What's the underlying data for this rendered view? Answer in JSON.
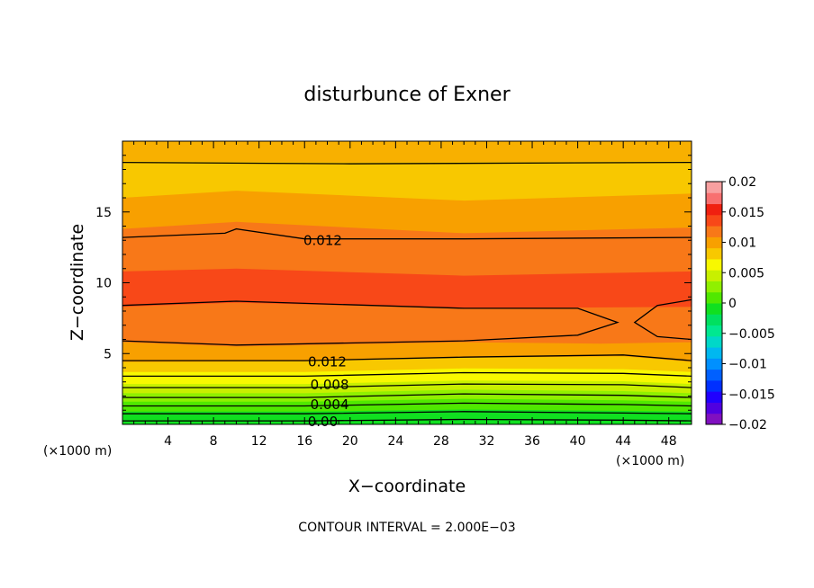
{
  "chart_data": {
    "type": "contour",
    "title": "disturbunce of Exner",
    "xlabel": "X−coordinate",
    "ylabel": "Z−coordinate",
    "x_unit_left": "(×1000 m)",
    "x_unit_right": "(×1000 m)",
    "xlim": [
      0,
      50
    ],
    "ylim": [
      0,
      20
    ],
    "x_ticks": [
      4,
      8,
      12,
      16,
      20,
      24,
      28,
      32,
      36,
      40,
      44,
      48
    ],
    "x_tick_labels": [
      "4",
      "8",
      "12",
      "16",
      "20",
      "24",
      "28",
      "32",
      "36",
      "40",
      "44",
      "48"
    ],
    "y_ticks": [
      5,
      10,
      15
    ],
    "y_tick_labels": [
      "5",
      "10",
      "15"
    ],
    "footer": "CONTOUR INTERVAL = 2.000E−03",
    "colorbar": {
      "labels": [
        "0.02",
        "0.015",
        "0.01",
        "0.005",
        "0",
        "−0.005",
        "−0.01",
        "−0.015",
        "−0.02"
      ],
      "label_values": [
        0.02,
        0.015,
        0.01,
        0.005,
        0,
        -0.005,
        -0.01,
        -0.015,
        -0.02
      ],
      "levels_low_to_high": [
        -0.02,
        -0.018,
        -0.016,
        -0.014,
        -0.012,
        -0.01,
        -0.008,
        -0.006,
        -0.004,
        -0.002,
        0,
        0.002,
        0.004,
        0.006,
        0.008,
        0.01,
        0.012,
        0.014,
        0.016,
        0.018,
        0.02
      ],
      "colors_low_to_high": [
        "#8010c0",
        "#5000e0",
        "#2000ff",
        "#0030ff",
        "#0060ff",
        "#0090ff",
        "#00b8f0",
        "#00d8c8",
        "#00e890",
        "#00e060",
        "#10e020",
        "#50e800",
        "#90f000",
        "#c8f000",
        "#f8f800",
        "#f8c800",
        "#f8a000",
        "#f87818",
        "#f84818",
        "#f02010",
        "#f87070",
        "#f8a0a0"
      ]
    },
    "contour_labels": [
      {
        "text": "0.012",
        "x": 17.6,
        "z": 13.0
      },
      {
        "text": "0.012",
        "x": 18.0,
        "z": 4.4
      },
      {
        "text": "0.008",
        "x": 18.2,
        "z": 2.8
      },
      {
        "text": "0.004",
        "x": 18.2,
        "z": 1.4
      },
      {
        "text": "0.00",
        "x": 17.6,
        "z": 0.2
      }
    ],
    "bands": [
      {
        "value": 0.001,
        "color": "#10e020",
        "pts": [
          [
            0,
            0.3
          ],
          [
            16,
            0.3
          ],
          [
            30,
            0.4
          ],
          [
            44,
            0.35
          ],
          [
            50,
            0.3
          ]
        ]
      },
      {
        "value": 0.003,
        "color": "#50e800",
        "pts": [
          [
            0,
            0.9
          ],
          [
            16,
            0.9
          ],
          [
            30,
            1.05
          ],
          [
            44,
            0.95
          ],
          [
            50,
            0.9
          ]
        ]
      },
      {
        "value": 0.005,
        "color": "#90f000",
        "pts": [
          [
            0,
            1.6
          ],
          [
            16,
            1.6
          ],
          [
            30,
            1.8
          ],
          [
            44,
            1.7
          ],
          [
            50,
            1.6
          ]
        ]
      },
      {
        "value": 0.007,
        "color": "#c8f000",
        "pts": [
          [
            0,
            2.2
          ],
          [
            16,
            2.2
          ],
          [
            30,
            2.45
          ],
          [
            44,
            2.35
          ],
          [
            50,
            2.2
          ]
        ]
      },
      {
        "value": 0.009,
        "color": "#f8f800",
        "pts": [
          [
            0,
            2.85
          ],
          [
            16,
            2.85
          ],
          [
            30,
            3.1
          ],
          [
            44,
            3.05
          ],
          [
            50,
            2.85
          ]
        ]
      },
      {
        "value": 0.011,
        "color": "#f8c800",
        "pts": [
          [
            0,
            3.7
          ],
          [
            16,
            3.7
          ],
          [
            30,
            3.95
          ],
          [
            44,
            3.9
          ],
          [
            50,
            3.7
          ]
        ]
      },
      {
        "value": 0.013,
        "color": "#f8a000",
        "pts": [
          [
            0,
            4.4
          ],
          [
            16,
            4.45
          ],
          [
            30,
            4.7
          ],
          [
            44,
            4.8
          ],
          [
            50,
            4.4
          ]
        ]
      },
      {
        "value": 0.015,
        "color": "#f87818",
        "pts": [
          [
            0,
            5.8
          ],
          [
            10,
            5.5
          ],
          [
            30,
            5.8
          ],
          [
            42,
            5.7
          ],
          [
            50,
            5.8
          ]
        ]
      },
      {
        "value": 0.017,
        "color": "#f84818",
        "pts": [
          [
            0,
            8.3
          ],
          [
            10,
            8.6
          ],
          [
            30,
            8.2
          ],
          [
            50,
            8.3
          ]
        ]
      },
      {
        "value": 0.016,
        "color": "#f87818",
        "pts": [
          [
            0,
            10.8
          ],
          [
            10,
            11.0
          ],
          [
            30,
            10.5
          ],
          [
            50,
            10.8
          ]
        ]
      },
      {
        "value": 0.014,
        "color": "#f8a000",
        "pts": [
          [
            0,
            13.8
          ],
          [
            10,
            14.3
          ],
          [
            30,
            13.5
          ],
          [
            50,
            13.9
          ]
        ]
      },
      {
        "value": 0.012,
        "color": "#f8c800",
        "pts": [
          [
            0,
            16.0
          ],
          [
            10,
            16.5
          ],
          [
            30,
            15.8
          ],
          [
            50,
            16.3
          ]
        ]
      },
      {
        "value": 0.011,
        "color": "#f8b000",
        "pts": [
          [
            0,
            18.6
          ],
          [
            20,
            18.5
          ],
          [
            50,
            18.6
          ]
        ]
      }
    ],
    "contour_lines": [
      {
        "value": 0.0,
        "pts": [
          [
            0,
            0.25
          ],
          [
            16,
            0.25
          ],
          [
            30,
            0.35
          ],
          [
            44,
            0.3
          ],
          [
            50,
            0.25
          ]
        ]
      },
      {
        "value": 0.002,
        "pts": [
          [
            0,
            0.75
          ],
          [
            16,
            0.75
          ],
          [
            30,
            0.9
          ],
          [
            44,
            0.8
          ],
          [
            50,
            0.75
          ]
        ]
      },
      {
        "value": 0.004,
        "pts": [
          [
            0,
            1.3
          ],
          [
            16,
            1.3
          ],
          [
            30,
            1.5
          ],
          [
            44,
            1.4
          ],
          [
            50,
            1.3
          ]
        ]
      },
      {
        "value": 0.006,
        "pts": [
          [
            0,
            1.9
          ],
          [
            16,
            1.9
          ],
          [
            30,
            2.15
          ],
          [
            44,
            2.05
          ],
          [
            50,
            1.9
          ]
        ]
      },
      {
        "value": 0.008,
        "pts": [
          [
            0,
            2.6
          ],
          [
            16,
            2.6
          ],
          [
            30,
            2.85
          ],
          [
            44,
            2.8
          ],
          [
            50,
            2.6
          ]
        ]
      },
      {
        "value": 0.01,
        "pts": [
          [
            0,
            3.4
          ],
          [
            16,
            3.4
          ],
          [
            30,
            3.65
          ],
          [
            44,
            3.6
          ],
          [
            50,
            3.4
          ]
        ]
      },
      {
        "value": 0.012,
        "pts": [
          [
            0,
            4.5
          ],
          [
            16,
            4.5
          ],
          [
            30,
            4.75
          ],
          [
            44,
            4.9
          ],
          [
            50,
            4.5
          ]
        ]
      },
      {
        "value": 0.014,
        "pts": [
          [
            0,
            5.9
          ],
          [
            10,
            5.6
          ],
          [
            30,
            5.9
          ],
          [
            40,
            6.3
          ],
          [
            43.5,
            7.2
          ],
          [
            40,
            8.2
          ],
          [
            30,
            8.2
          ],
          [
            10,
            8.7
          ],
          [
            0,
            8.4
          ]
        ]
      },
      {
        "value": 0.014,
        "pts": [
          [
            50,
            6.0
          ],
          [
            47,
            6.2
          ],
          [
            45,
            7.2
          ],
          [
            47,
            8.4
          ],
          [
            50,
            8.8
          ]
        ]
      },
      {
        "value": 0.012,
        "pts": [
          [
            0,
            13.2
          ],
          [
            9,
            13.5
          ],
          [
            10,
            13.8
          ],
          [
            16,
            13.1
          ],
          [
            30,
            13.1
          ],
          [
            50,
            13.2
          ]
        ]
      },
      {
        "value": 0.01,
        "pts": [
          [
            0,
            18.5
          ],
          [
            20,
            18.4
          ],
          [
            50,
            18.5
          ]
        ]
      }
    ]
  }
}
